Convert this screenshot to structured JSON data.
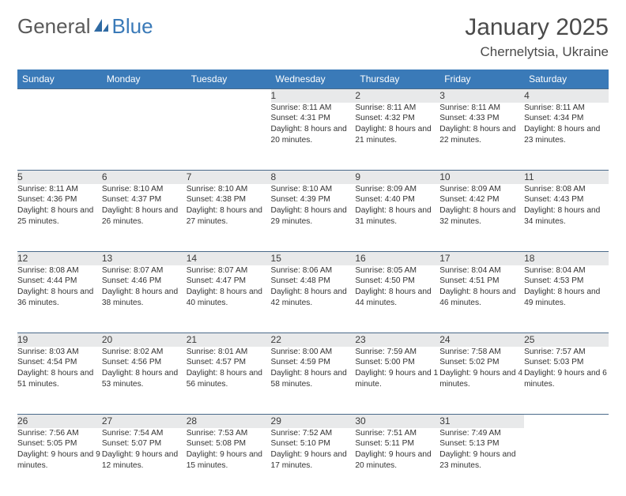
{
  "brand": {
    "part1": "General",
    "part2": "Blue"
  },
  "title": "January 2025",
  "location": "Chernelytsia, Ukraine",
  "colors": {
    "header_bg": "#3a7ab8",
    "header_text": "#ffffff",
    "daynum_bg": "#e8e9ea",
    "border": "#4a6a8a",
    "text": "#333333",
    "background": "#ffffff"
  },
  "day_headers": [
    "Sunday",
    "Monday",
    "Tuesday",
    "Wednesday",
    "Thursday",
    "Friday",
    "Saturday"
  ],
  "weeks": [
    [
      null,
      null,
      null,
      {
        "n": "1",
        "sr": "8:11 AM",
        "ss": "4:31 PM",
        "dl": "8 hours and 20 minutes."
      },
      {
        "n": "2",
        "sr": "8:11 AM",
        "ss": "4:32 PM",
        "dl": "8 hours and 21 minutes."
      },
      {
        "n": "3",
        "sr": "8:11 AM",
        "ss": "4:33 PM",
        "dl": "8 hours and 22 minutes."
      },
      {
        "n": "4",
        "sr": "8:11 AM",
        "ss": "4:34 PM",
        "dl": "8 hours and 23 minutes."
      }
    ],
    [
      {
        "n": "5",
        "sr": "8:11 AM",
        "ss": "4:36 PM",
        "dl": "8 hours and 25 minutes."
      },
      {
        "n": "6",
        "sr": "8:10 AM",
        "ss": "4:37 PM",
        "dl": "8 hours and 26 minutes."
      },
      {
        "n": "7",
        "sr": "8:10 AM",
        "ss": "4:38 PM",
        "dl": "8 hours and 27 minutes."
      },
      {
        "n": "8",
        "sr": "8:10 AM",
        "ss": "4:39 PM",
        "dl": "8 hours and 29 minutes."
      },
      {
        "n": "9",
        "sr": "8:09 AM",
        "ss": "4:40 PM",
        "dl": "8 hours and 31 minutes."
      },
      {
        "n": "10",
        "sr": "8:09 AM",
        "ss": "4:42 PM",
        "dl": "8 hours and 32 minutes."
      },
      {
        "n": "11",
        "sr": "8:08 AM",
        "ss": "4:43 PM",
        "dl": "8 hours and 34 minutes."
      }
    ],
    [
      {
        "n": "12",
        "sr": "8:08 AM",
        "ss": "4:44 PM",
        "dl": "8 hours and 36 minutes."
      },
      {
        "n": "13",
        "sr": "8:07 AM",
        "ss": "4:46 PM",
        "dl": "8 hours and 38 minutes."
      },
      {
        "n": "14",
        "sr": "8:07 AM",
        "ss": "4:47 PM",
        "dl": "8 hours and 40 minutes."
      },
      {
        "n": "15",
        "sr": "8:06 AM",
        "ss": "4:48 PM",
        "dl": "8 hours and 42 minutes."
      },
      {
        "n": "16",
        "sr": "8:05 AM",
        "ss": "4:50 PM",
        "dl": "8 hours and 44 minutes."
      },
      {
        "n": "17",
        "sr": "8:04 AM",
        "ss": "4:51 PM",
        "dl": "8 hours and 46 minutes."
      },
      {
        "n": "18",
        "sr": "8:04 AM",
        "ss": "4:53 PM",
        "dl": "8 hours and 49 minutes."
      }
    ],
    [
      {
        "n": "19",
        "sr": "8:03 AM",
        "ss": "4:54 PM",
        "dl": "8 hours and 51 minutes."
      },
      {
        "n": "20",
        "sr": "8:02 AM",
        "ss": "4:56 PM",
        "dl": "8 hours and 53 minutes."
      },
      {
        "n": "21",
        "sr": "8:01 AM",
        "ss": "4:57 PM",
        "dl": "8 hours and 56 minutes."
      },
      {
        "n": "22",
        "sr": "8:00 AM",
        "ss": "4:59 PM",
        "dl": "8 hours and 58 minutes."
      },
      {
        "n": "23",
        "sr": "7:59 AM",
        "ss": "5:00 PM",
        "dl": "9 hours and 1 minute."
      },
      {
        "n": "24",
        "sr": "7:58 AM",
        "ss": "5:02 PM",
        "dl": "9 hours and 4 minutes."
      },
      {
        "n": "25",
        "sr": "7:57 AM",
        "ss": "5:03 PM",
        "dl": "9 hours and 6 minutes."
      }
    ],
    [
      {
        "n": "26",
        "sr": "7:56 AM",
        "ss": "5:05 PM",
        "dl": "9 hours and 9 minutes."
      },
      {
        "n": "27",
        "sr": "7:54 AM",
        "ss": "5:07 PM",
        "dl": "9 hours and 12 minutes."
      },
      {
        "n": "28",
        "sr": "7:53 AM",
        "ss": "5:08 PM",
        "dl": "9 hours and 15 minutes."
      },
      {
        "n": "29",
        "sr": "7:52 AM",
        "ss": "5:10 PM",
        "dl": "9 hours and 17 minutes."
      },
      {
        "n": "30",
        "sr": "7:51 AM",
        "ss": "5:11 PM",
        "dl": "9 hours and 20 minutes."
      },
      {
        "n": "31",
        "sr": "7:49 AM",
        "ss": "5:13 PM",
        "dl": "9 hours and 23 minutes."
      },
      null
    ]
  ],
  "labels": {
    "sunrise": "Sunrise:",
    "sunset": "Sunset:",
    "daylight": "Daylight:"
  }
}
